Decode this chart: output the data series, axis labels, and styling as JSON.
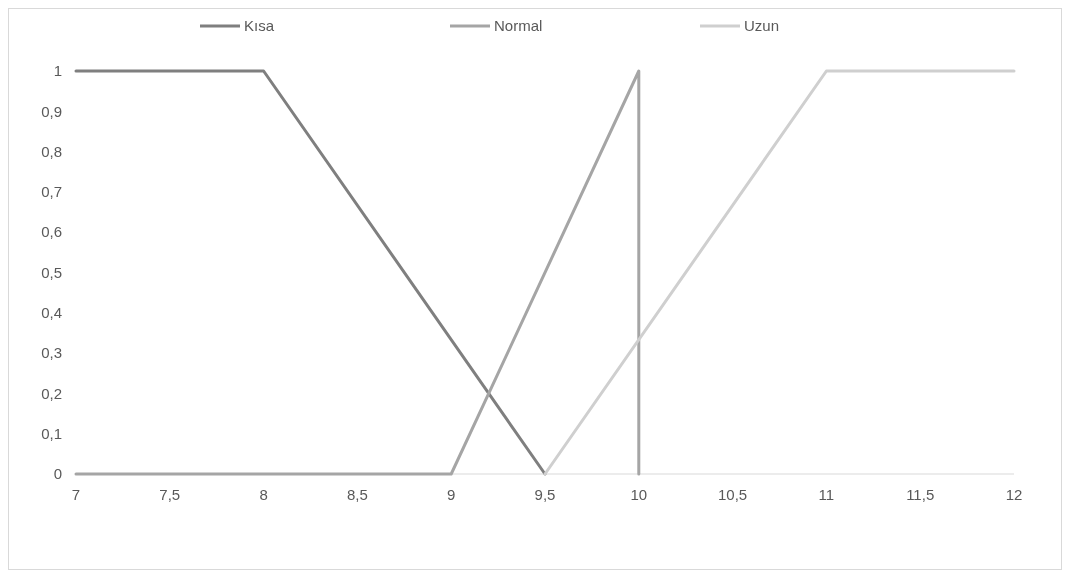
{
  "chart_data": {
    "type": "line",
    "xlim": [
      7,
      12
    ],
    "xticks": [
      7,
      {
        "value": 7.5,
        "label": "7,5"
      },
      8,
      {
        "value": 8.5,
        "label": "8,5"
      },
      9,
      {
        "value": 9.5,
        "label": "9,5"
      },
      10,
      {
        "value": 10.5,
        "label": "10,5"
      },
      11,
      {
        "value": 11.5,
        "label": "11,5"
      },
      12
    ],
    "ylim": [
      0,
      1
    ],
    "yticks": [
      0,
      {
        "value": 0.1,
        "label": "0,1"
      },
      {
        "value": 0.2,
        "label": "0,2"
      },
      {
        "value": 0.3,
        "label": "0,3"
      },
      {
        "value": 0.4,
        "label": "0,4"
      },
      {
        "value": 0.5,
        "label": "0,5"
      },
      {
        "value": 0.6,
        "label": "0,6"
      },
      {
        "value": 0.7,
        "label": "0,7"
      },
      {
        "value": 0.8,
        "label": "0,8"
      },
      {
        "value": 0.9,
        "label": "0,9"
      },
      1
    ],
    "legend": "top",
    "grid": false,
    "marker": "none",
    "series": [
      {
        "name": "Kısa",
        "color": "#7f7f7f",
        "x": [
          7,
          8,
          9.5
        ],
        "values": [
          1,
          1,
          0
        ]
      },
      {
        "name": "Normal",
        "color": "#a5a5a5",
        "x": [
          7,
          9,
          10,
          10
        ],
        "values": [
          0,
          0,
          1,
          0
        ]
      },
      {
        "name": "Uzun",
        "color": "#cfcfcf",
        "x": [
          9.5,
          11,
          12
        ],
        "values": [
          0,
          1,
          1
        ]
      }
    ]
  }
}
